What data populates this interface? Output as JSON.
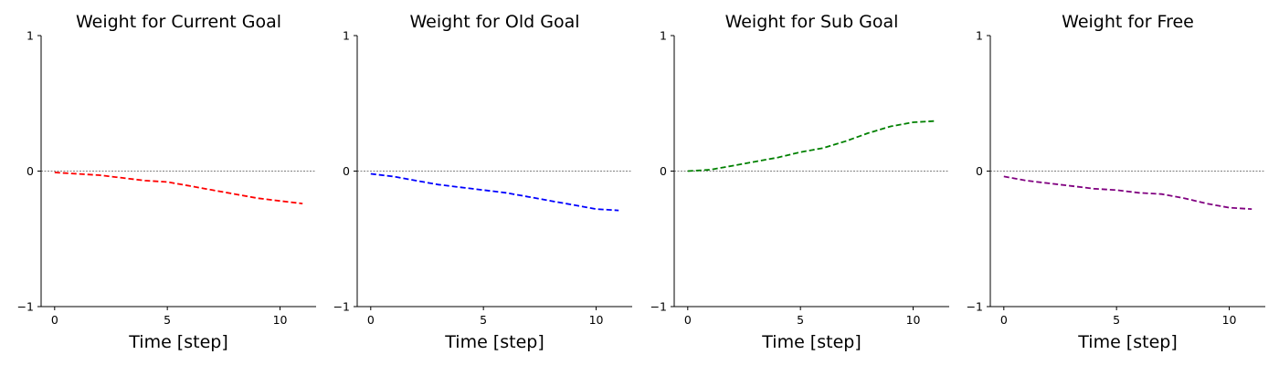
{
  "chart_data": [
    {
      "type": "line",
      "title": "Weight for Current Goal",
      "xlabel": "Time [step]",
      "ylabel": "",
      "xlim": [
        -0.6,
        11.6
      ],
      "ylim": [
        -1,
        1
      ],
      "xticks": [
        0,
        5,
        10
      ],
      "yticks": [
        -1,
        0,
        1
      ],
      "zero_line": true,
      "grid": false,
      "series": [
        {
          "color": "#ff0000",
          "linestyle": "dashed",
          "x": [
            0,
            1,
            2,
            3,
            4,
            5,
            6,
            7,
            8,
            9,
            10,
            11
          ],
          "values": [
            -0.01,
            -0.02,
            -0.03,
            -0.05,
            -0.07,
            -0.08,
            -0.11,
            -0.14,
            -0.17,
            -0.2,
            -0.22,
            -0.24
          ]
        }
      ]
    },
    {
      "type": "line",
      "title": "Weight for Old Goal",
      "xlabel": "Time [step]",
      "ylabel": "",
      "xlim": [
        -0.6,
        11.6
      ],
      "ylim": [
        -1,
        1
      ],
      "xticks": [
        0,
        5,
        10
      ],
      "yticks": [
        -1,
        0,
        1
      ],
      "zero_line": true,
      "grid": false,
      "series": [
        {
          "color": "#0000ff",
          "linestyle": "dashed",
          "x": [
            0,
            1,
            2,
            3,
            4,
            5,
            6,
            7,
            8,
            9,
            10,
            11
          ],
          "values": [
            -0.02,
            -0.04,
            -0.07,
            -0.1,
            -0.12,
            -0.14,
            -0.16,
            -0.19,
            -0.22,
            -0.25,
            -0.28,
            -0.29
          ]
        }
      ]
    },
    {
      "type": "line",
      "title": "Weight for Sub Goal",
      "xlabel": "Time [step]",
      "ylabel": "",
      "xlim": [
        -0.6,
        11.6
      ],
      "ylim": [
        -1,
        1
      ],
      "xticks": [
        0,
        5,
        10
      ],
      "yticks": [
        -1,
        0,
        1
      ],
      "zero_line": true,
      "grid": false,
      "series": [
        {
          "color": "#008000",
          "linestyle": "dashed",
          "x": [
            0,
            1,
            2,
            3,
            4,
            5,
            6,
            7,
            8,
            9,
            10,
            11
          ],
          "values": [
            0.0,
            0.01,
            0.04,
            0.07,
            0.1,
            0.14,
            0.17,
            0.22,
            0.28,
            0.33,
            0.36,
            0.37
          ]
        }
      ]
    },
    {
      "type": "line",
      "title": "Weight for Free",
      "xlabel": "Time [step]",
      "ylabel": "",
      "xlim": [
        -0.6,
        11.6
      ],
      "ylim": [
        -1,
        1
      ],
      "xticks": [
        0,
        5,
        10
      ],
      "yticks": [
        -1,
        0,
        1
      ],
      "zero_line": true,
      "grid": false,
      "series": [
        {
          "color": "#800080",
          "linestyle": "dashed",
          "x": [
            0,
            1,
            2,
            3,
            4,
            5,
            6,
            7,
            8,
            9,
            10,
            11
          ],
          "values": [
            -0.04,
            -0.07,
            -0.09,
            -0.11,
            -0.13,
            -0.14,
            -0.16,
            -0.17,
            -0.2,
            -0.24,
            -0.27,
            -0.28
          ]
        }
      ]
    }
  ]
}
